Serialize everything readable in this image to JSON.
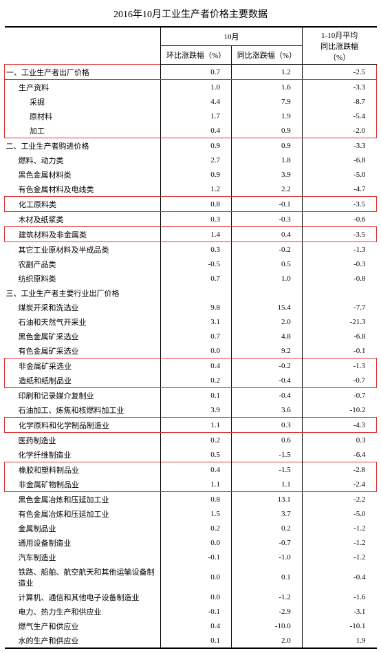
{
  "title": "2016年10月工业生产者价格主要数据",
  "header": {
    "month_group": "10月",
    "col1": "环比涨跌幅（%）",
    "col2": "同比涨跌幅（%）",
    "col3a": "1-10月平均",
    "col3b": "同比涨跌幅",
    "col3c": "（%）"
  },
  "rows": [
    {
      "label": "一、工业生产者出厂价格",
      "indent": 0,
      "v": [
        "0.7",
        "1.2",
        "-2.5"
      ],
      "hl": "top"
    },
    {
      "label": "生产资料",
      "indent": 1,
      "v": [
        "1.0",
        "1.6",
        "-3.3"
      ],
      "hl": "mid"
    },
    {
      "label": "采掘",
      "indent": 2,
      "v": [
        "4.4",
        "7.9",
        "-8.7"
      ]
    },
    {
      "label": "原材料",
      "indent": 2,
      "v": [
        "1.7",
        "1.9",
        "-5.4"
      ]
    },
    {
      "label": "加工",
      "indent": 2,
      "v": [
        "0.4",
        "0.9",
        "-2.0"
      ],
      "hl": "bot"
    },
    {
      "label": "二、工业生产者购进价格",
      "indent": 0,
      "v": [
        "0.9",
        "0.9",
        "-3.3"
      ]
    },
    {
      "label": "燃料、动力类",
      "indent": 1,
      "v": [
        "2.7",
        "1.8",
        "-6.8"
      ]
    },
    {
      "label": "黑色金属材料类",
      "indent": 1,
      "v": [
        "0.9",
        "3.9",
        "-5.0"
      ]
    },
    {
      "label": "有色金属材料及电线类",
      "indent": 1,
      "v": [
        "1.2",
        "2.2",
        "-4.7"
      ]
    },
    {
      "label": "化工原料类",
      "indent": 1,
      "v": [
        "0.8",
        "-0.1",
        "-3.5"
      ],
      "hl": "single"
    },
    {
      "label": "木材及纸浆类",
      "indent": 1,
      "v": [
        "0.3",
        "-0.3",
        "-0.6"
      ]
    },
    {
      "label": "建筑材料及非金属类",
      "indent": 1,
      "v": [
        "1.4",
        "0.4",
        "-3.5"
      ],
      "hl": "single"
    },
    {
      "label": "其它工业原材料及半成品类",
      "indent": 1,
      "v": [
        "0.3",
        "-0.2",
        "-1.3"
      ]
    },
    {
      "label": "农副产品类",
      "indent": 1,
      "v": [
        "-0.5",
        "0.5",
        "-0.3"
      ]
    },
    {
      "label": "纺织原料类",
      "indent": 1,
      "v": [
        "0.7",
        "1.0",
        "-0.8"
      ]
    },
    {
      "label": "三、工业生产者主要行业出厂价格",
      "indent": 0,
      "v": [
        "",
        "",
        ""
      ]
    },
    {
      "label": "煤炭开采和洗选业",
      "indent": 1,
      "v": [
        "9.8",
        "15.4",
        "-7.7"
      ]
    },
    {
      "label": "石油和天然气开采业",
      "indent": 1,
      "v": [
        "3.1",
        "2.0",
        "-21.3"
      ]
    },
    {
      "label": "黑色金属矿采选业",
      "indent": 1,
      "v": [
        "0.7",
        "4.8",
        "-6.8"
      ]
    },
    {
      "label": "有色金属矿采选业",
      "indent": 1,
      "v": [
        "0.0",
        "9.2",
        "-0.1"
      ]
    },
    {
      "label": "非金属矿采选业",
      "indent": 1,
      "v": [
        "0.4",
        "-0.2",
        "-1.3"
      ],
      "hl": "top"
    },
    {
      "label": "造纸和纸制品业",
      "indent": 1,
      "v": [
        "0.2",
        "-0.4",
        "-0.7"
      ],
      "hl": "bot"
    },
    {
      "label": "印刷和记录媒介复制业",
      "indent": 1,
      "v": [
        "0.1",
        "-0.4",
        "-0.7"
      ]
    },
    {
      "label": "石油加工、炼焦和核燃料加工业",
      "indent": 1,
      "v": [
        "3.9",
        "3.6",
        "-10.2"
      ]
    },
    {
      "label": "化学原料和化学制品制造业",
      "indent": 1,
      "v": [
        "1.1",
        "0.3",
        "-4.3"
      ],
      "hl": "single"
    },
    {
      "label": "医药制造业",
      "indent": 1,
      "v": [
        "0.2",
        "0.6",
        "0.3"
      ]
    },
    {
      "label": "化学纤维制造业",
      "indent": 1,
      "v": [
        "0.5",
        "-1.5",
        "-6.4"
      ]
    },
    {
      "label": "橡胶和塑料制品业",
      "indent": 1,
      "v": [
        "0.4",
        "-1.5",
        "-2.8"
      ],
      "hl": "top"
    },
    {
      "label": "非金属矿物制品业",
      "indent": 1,
      "v": [
        "1.1",
        "1.1",
        "-2.4"
      ],
      "hl": "bot"
    },
    {
      "label": "黑色金属冶炼和压延加工业",
      "indent": 1,
      "v": [
        "0.8",
        "13.1",
        "-2.2"
      ]
    },
    {
      "label": "有色金属冶炼和压延加工业",
      "indent": 1,
      "v": [
        "1.5",
        "3.7",
        "-5.0"
      ]
    },
    {
      "label": "金属制品业",
      "indent": 1,
      "v": [
        "0.2",
        "0.2",
        "-1.2"
      ]
    },
    {
      "label": "通用设备制造业",
      "indent": 1,
      "v": [
        "0.0",
        "-0.7",
        "-1.2"
      ]
    },
    {
      "label": "汽车制造业",
      "indent": 1,
      "v": [
        "-0.1",
        "-1.0",
        "-1.2"
      ]
    },
    {
      "label": "铁路、船舶、航空航天和其他运输设备制造业",
      "indent": 1,
      "v": [
        "0.0",
        "0.1",
        "-0.4"
      ]
    },
    {
      "label": "计算机、通信和其他电子设备制造业",
      "indent": 1,
      "v": [
        "0.0",
        "-1.2",
        "-1.6"
      ]
    },
    {
      "label": "电力、热力生产和供应业",
      "indent": 1,
      "v": [
        "-0.1",
        "-2.9",
        "-3.1"
      ]
    },
    {
      "label": "燃气生产和供应业",
      "indent": 1,
      "v": [
        "0.4",
        "-10.0",
        "-10.1"
      ]
    },
    {
      "label": "水的生产和供应业",
      "indent": 1,
      "v": [
        "0.1",
        "2.0",
        "1.9"
      ],
      "last": true
    }
  ]
}
